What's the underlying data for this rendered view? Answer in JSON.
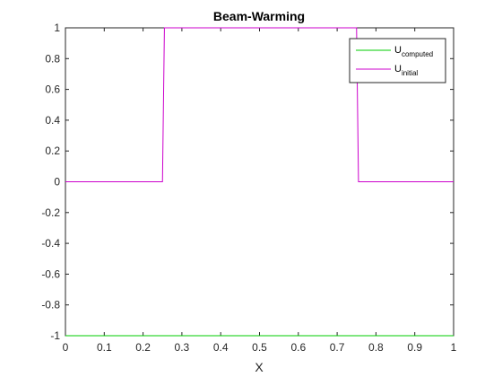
{
  "chart_data": {
    "type": "line",
    "title": "Beam-Warming",
    "xlabel": "X",
    "ylabel": "",
    "xlim": [
      0,
      1
    ],
    "ylim": [
      -1,
      1
    ],
    "xticks": [
      "0",
      "0.1",
      "0.2",
      "0.3",
      "0.4",
      "0.5",
      "0.6",
      "0.7",
      "0.8",
      "0.9",
      "1"
    ],
    "yticks": [
      "-1",
      "-0.8",
      "-0.6",
      "-0.4",
      "-0.2",
      "0",
      "0.2",
      "0.4",
      "0.6",
      "0.8",
      "1"
    ],
    "grid": false,
    "legend_position": "top-right",
    "series": [
      {
        "name_main": "U",
        "name_sub": "computed",
        "color": "#00cc00",
        "x": [
          0,
          1
        ],
        "y": [
          -1,
          -1
        ]
      },
      {
        "name_main": "U",
        "name_sub": "initial",
        "color": "#cc00cc",
        "x": [
          0,
          0.25,
          0.255,
          0.75,
          0.755,
          1
        ],
        "y": [
          0,
          0,
          1,
          1,
          0,
          0
        ]
      }
    ]
  }
}
